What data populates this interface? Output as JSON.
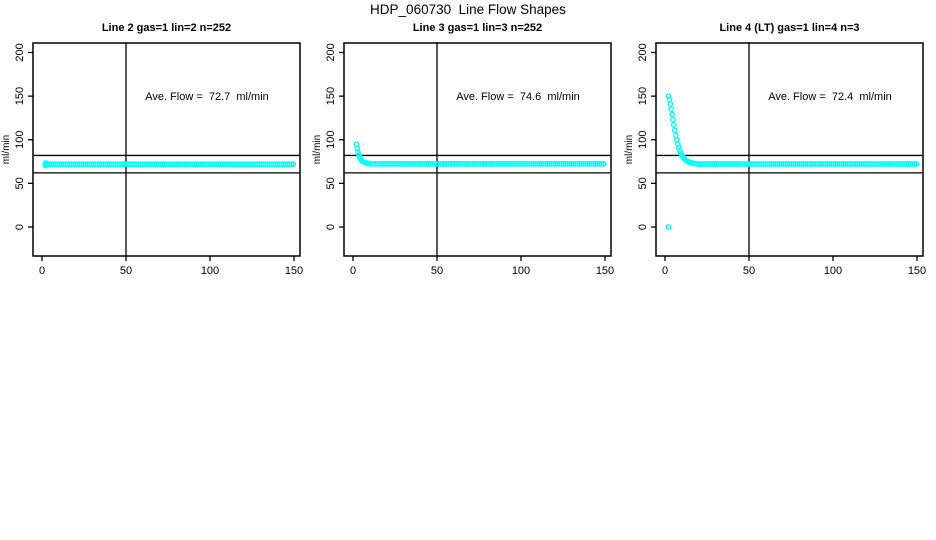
{
  "page": {
    "title": "HDP_060730  Line Flow Shapes"
  },
  "colors": {
    "marker": "#00FFFF",
    "axis": "#000000",
    "background": "#FFFFFF"
  },
  "chart_data": [
    {
      "type": "scatter",
      "title": "Line 2 gas=1 lin=2 n=252",
      "annotation": "Ave. Flow =  72.7  ml/min",
      "xlabel": "",
      "ylabel": "ml/min",
      "x_ticks": [
        0,
        50,
        100,
        150
      ],
      "y_ticks": [
        0,
        50,
        100,
        150,
        200
      ],
      "xlim": [
        -5,
        155
      ],
      "ylim": [
        -30,
        210
      ],
      "grid": false,
      "legend": "none",
      "marker": "open-circle",
      "ref_lines": {
        "vertical_x": 50,
        "horizontal_y": [
          82,
          62
        ]
      },
      "ave_flow_ml_min": 72.7,
      "points": [
        [
          2,
          73.2
        ],
        [
          2,
          70.5
        ],
        [
          2.6,
          70.8
        ],
        [
          3.2,
          72.8
        ],
        {
          "flat": [
            2,
            150,
            1.2,
            72
          ]
        }
      ]
    },
    {
      "type": "scatter",
      "title": "Line 3 gas=1 lin=3 n=252",
      "annotation": "Ave. Flow =  74.6  ml/min",
      "xlabel": "",
      "ylabel": "ml/min",
      "x_ticks": [
        0,
        50,
        100,
        150
      ],
      "y_ticks": [
        0,
        50,
        100,
        150,
        200
      ],
      "xlim": [
        -5,
        155
      ],
      "ylim": [
        -30,
        210
      ],
      "grid": false,
      "legend": "none",
      "marker": "open-circle",
      "ref_lines": {
        "vertical_x": 50,
        "horizontal_y": [
          82,
          62
        ]
      },
      "ave_flow_ml_min": 74.6,
      "points": [
        [
          2,
          95
        ],
        [
          2.5,
          90
        ],
        [
          3,
          86
        ],
        [
          3.5,
          82.5
        ],
        [
          4,
          80
        ],
        [
          4.5,
          78
        ],
        [
          5,
          76.5
        ],
        [
          6,
          75
        ],
        [
          7,
          74
        ],
        [
          8,
          73.5
        ],
        [
          9,
          73
        ],
        [
          10,
          72.8
        ],
        {
          "flat": [
            10,
            150,
            1.2,
            72.3
          ]
        }
      ]
    },
    {
      "type": "scatter",
      "title": "Line 4 (LT) gas=1 lin=4 n=3",
      "annotation": "Ave. Flow =  72.4  ml/min",
      "xlabel": "",
      "ylabel": "ml/min",
      "x_ticks": [
        0,
        50,
        100,
        150
      ],
      "y_ticks": [
        0,
        50,
        100,
        150,
        200
      ],
      "xlim": [
        -5,
        155
      ],
      "ylim": [
        -30,
        210
      ],
      "grid": false,
      "legend": "none",
      "marker": "open-circle",
      "ref_lines": {
        "vertical_x": 50,
        "horizontal_y": [
          82,
          62
        ]
      },
      "ave_flow_ml_min": 72.4,
      "points": [
        [
          2,
          0
        ],
        [
          2,
          150
        ],
        [
          2.7,
          146
        ],
        [
          3.2,
          141
        ],
        [
          3.7,
          135
        ],
        [
          4.2,
          129
        ],
        [
          4.7,
          123
        ],
        [
          5.2,
          117
        ],
        [
          5.8,
          111
        ],
        [
          6.4,
          105
        ],
        [
          7,
          100
        ],
        [
          7.6,
          95
        ],
        [
          8.2,
          91
        ],
        [
          8.8,
          87.5
        ],
        [
          9.4,
          84.5
        ],
        [
          10,
          82
        ],
        [
          10.7,
          80
        ],
        [
          11.4,
          78.3
        ],
        [
          12.1,
          77
        ],
        [
          12.9,
          75.9
        ],
        [
          13.7,
          75
        ],
        [
          14.6,
          74.3
        ],
        [
          15.5,
          73.7
        ],
        [
          16.5,
          73.2
        ],
        [
          17.5,
          72.8
        ],
        [
          19,
          72.5
        ],
        {
          "flat": [
            20,
            150,
            1.2,
            72.2
          ]
        }
      ]
    }
  ]
}
